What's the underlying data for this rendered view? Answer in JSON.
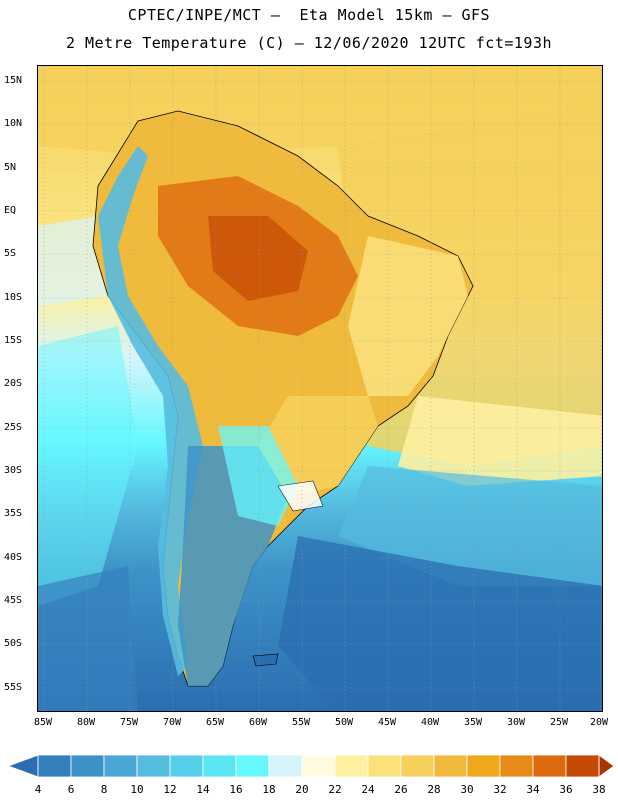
{
  "header": {
    "title_line1": "CPTEC/INPE/MCT –  Eta Model 15km – GFS",
    "title_line2": "2 Metre Temperature (C) – 12/06/2020 12UTC fct=193h"
  },
  "map": {
    "lat_labels": [
      "15N",
      "10N",
      "5N",
      "EQ",
      "5S",
      "10S",
      "15S",
      "20S",
      "25S",
      "30S",
      "35S",
      "40S",
      "45S",
      "50S",
      "55S"
    ],
    "lon_labels": [
      "85W",
      "80W",
      "75W",
      "70W",
      "65W",
      "60W",
      "55W",
      "50W",
      "45W",
      "40W",
      "35W",
      "30W",
      "25W",
      "20W"
    ],
    "temperature_zones": [
      {
        "name": "caribbean-north",
        "value_c": 28
      },
      {
        "name": "atlantic-equatorial",
        "value_c": 28
      },
      {
        "name": "amazon-core",
        "value_c": 36
      },
      {
        "name": "central-brazil",
        "value_c": 34
      },
      {
        "name": "east-brazil-coast",
        "value_c": 24
      },
      {
        "name": "pacific-equatorial",
        "value_c": 22
      },
      {
        "name": "andes-highlands",
        "value_c": 14
      },
      {
        "name": "southern-brazil",
        "value_c": 26
      },
      {
        "name": "pampas",
        "value_c": 14
      },
      {
        "name": "patagonia",
        "value_c": 6
      },
      {
        "name": "south-atlantic",
        "value_c": 16
      },
      {
        "name": "southern-ocean",
        "value_c": 8
      }
    ]
  },
  "colorbar": {
    "labels": [
      "4",
      "6",
      "8",
      "10",
      "12",
      "14",
      "16",
      "18",
      "20",
      "22",
      "24",
      "26",
      "28",
      "30",
      "32",
      "34",
      "36",
      "38"
    ],
    "colors": [
      "#2a6db0",
      "#3480bd",
      "#3d93c8",
      "#4aa6d4",
      "#55bce0",
      "#56d0ea",
      "#5ce6f4",
      "#66f8ff",
      "#d8f4fb",
      "#fffae0",
      "#fdf0a0",
      "#fae17a",
      "#f5d05a",
      "#f0bb3c",
      "#eea81a",
      "#e78b18",
      "#dd6a0e",
      "#c44a06",
      "#a83400"
    ]
  }
}
